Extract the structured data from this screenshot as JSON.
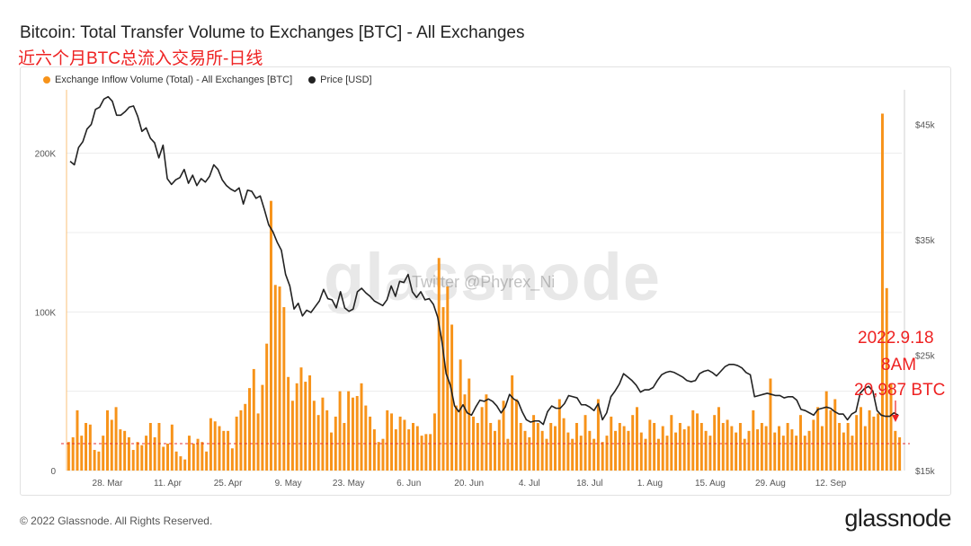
{
  "header": {
    "title": "Bitcoin: Total Transfer Volume to Exchanges [BTC] - All Exchanges",
    "subtitle": "近六个月BTC总流入交易所-日线"
  },
  "watermarks": {
    "brand": "glassnode",
    "credit": "Twitter @Phyrex_Ni"
  },
  "annotation": {
    "date": "2022.9.18",
    "time": "8AM",
    "value": "20,987 BTC"
  },
  "footer": {
    "copyright": "© 2022 Glassnode. All Rights Reserved.",
    "brand": "glassnode"
  },
  "colors": {
    "bars": "#f7931a",
    "price_line": "#222222",
    "reference_line": "#e53030",
    "annotation": "#ee2222"
  },
  "chart_data": {
    "type": "bar",
    "x_ticks": [
      "28. Mar",
      "11. Apr",
      "25. Apr",
      "9. May",
      "23. May",
      "6. Jun",
      "20. Jun",
      "4. Jul",
      "18. Jul",
      "1. Aug",
      "15. Aug",
      "29. Aug",
      "12. Sep"
    ],
    "y_left_ticks": [
      "0",
      "100K",
      "200K"
    ],
    "y_right_ticks": [
      "$15k",
      "$25k",
      "$35k",
      "$45k"
    ],
    "y_left_range": [
      0,
      240000
    ],
    "y_right_range": [
      15000,
      48000
    ],
    "reference_line_value": 17000,
    "series": [
      {
        "name": "Exchange Inflow Volume (Total) - All Exchanges [BTC]",
        "type": "bar",
        "values": [
          18000,
          21000,
          38000,
          22000,
          30000,
          29000,
          13000,
          12000,
          22000,
          38000,
          32000,
          40000,
          26000,
          25000,
          21000,
          13000,
          18000,
          16000,
          22000,
          30000,
          21000,
          30000,
          15000,
          17000,
          29000,
          12000,
          9000,
          7000,
          22000,
          17000,
          20000,
          18000,
          12000,
          33000,
          31000,
          28000,
          25000,
          25000,
          14000,
          34000,
          38000,
          42000,
          52000,
          64000,
          36000,
          54000,
          80000,
          170000,
          117000,
          116000,
          103000,
          59000,
          44000,
          55000,
          65000,
          56000,
          60000,
          44000,
          35000,
          46000,
          38000,
          24000,
          34000,
          50000,
          30000,
          50000,
          46000,
          47000,
          55000,
          41000,
          34000,
          26000,
          18000,
          20000,
          38000,
          36000,
          26000,
          34000,
          32000,
          26000,
          30000,
          28000,
          22000,
          23000,
          23000,
          36000,
          134000,
          103000,
          116000,
          92000,
          41000,
          70000,
          48000,
          58000,
          34000,
          30000,
          40000,
          48000,
          30000,
          25000,
          32000,
          44000,
          20000,
          60000,
          45000,
          30000,
          25000,
          21000,
          35000,
          30000,
          25000,
          20000,
          30000,
          28000,
          45000,
          33000,
          24000,
          20000,
          30000,
          22000,
          35000,
          25000,
          20000,
          45000,
          18000,
          22000,
          34000,
          25000,
          30000,
          28000,
          25000,
          35000,
          40000,
          24000,
          20000,
          32000,
          30000,
          20000,
          28000,
          22000,
          35000,
          24000,
          30000,
          26000,
          28000,
          38000,
          36000,
          30000,
          25000,
          22000,
          35000,
          40000,
          30000,
          32000,
          28000,
          24000,
          30000,
          20000,
          25000,
          38000,
          26000,
          30000,
          28000,
          58000,
          24000,
          28000,
          22000,
          30000,
          26000,
          22000,
          35000,
          22000,
          25000,
          32000,
          40000,
          28000,
          50000,
          38000,
          45000,
          30000,
          24000,
          30000,
          22000,
          35000,
          40000,
          28000,
          38000,
          34000,
          36000,
          225000,
          115000,
          55000,
          25000,
          21000
        ]
      },
      {
        "name": "Price [USD]",
        "type": "line",
        "values": [
          41800,
          41500,
          43000,
          43500,
          44600,
          45000,
          46300,
          46500,
          47200,
          47400,
          47000,
          45800,
          45800,
          46100,
          46500,
          46600,
          45700,
          44400,
          44700,
          43800,
          43400,
          42100,
          43200,
          40300,
          39800,
          40200,
          40400,
          41100,
          39900,
          40600,
          39700,
          40300,
          40000,
          40500,
          41500,
          41100,
          40200,
          39700,
          39400,
          39200,
          39500,
          38100,
          39300,
          39200,
          38600,
          38800,
          37600,
          36300,
          35700,
          34800,
          34100,
          32000,
          31000,
          29000,
          29500,
          28400,
          28900,
          28700,
          29200,
          29700,
          30700,
          29900,
          29800,
          29100,
          30500,
          29100,
          28800,
          29000,
          30500,
          30800,
          30400,
          30100,
          29700,
          29500,
          29300,
          29800,
          31000,
          30100,
          31400,
          31300,
          32000,
          30500,
          30000,
          30500,
          29800,
          29900,
          29400,
          28300,
          26200,
          23400,
          22400,
          20600,
          20100,
          20700,
          20000,
          19800,
          20500,
          21100,
          21000,
          21200,
          21000,
          20600,
          20000,
          20500,
          21600,
          21200,
          21000,
          20100,
          19400,
          19200,
          19300,
          19300,
          19000,
          20100,
          20600,
          20400,
          20400,
          20800,
          21500,
          21400,
          21300,
          20700,
          20700,
          20500,
          20200,
          20800,
          19400,
          20000,
          21400,
          21900,
          22500,
          23400,
          23100,
          22800,
          22400,
          21800,
          22000,
          22000,
          22200,
          22800,
          23300,
          23500,
          23600,
          23500,
          23300,
          23100,
          22800,
          22700,
          22800,
          23400,
          23600,
          23700,
          23500,
          23200,
          23600,
          24000,
          24200,
          24200,
          24100,
          23900,
          23500,
          23300,
          21400,
          21500,
          21600,
          21700,
          21600,
          21500,
          21500,
          21300,
          21400,
          21400,
          21100,
          20300,
          20200,
          20000,
          19800,
          20300,
          20400,
          20500,
          20400,
          20100,
          19900,
          19900,
          19400,
          19900,
          20100,
          21700,
          22100,
          22300,
          21900,
          20200,
          19800,
          19700,
          19700,
          20000,
          19800
        ]
      }
    ],
    "legend_position": "top-left",
    "grid": "horizontal"
  }
}
